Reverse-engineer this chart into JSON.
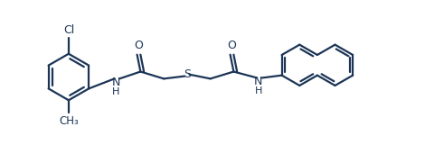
{
  "bg_color": "#ffffff",
  "line_color": "#1c3557",
  "line_width": 1.6,
  "font_size": 9,
  "fig_width": 4.91,
  "fig_height": 1.71,
  "dpi": 100,
  "xlim": [
    0,
    14.5
  ],
  "ylim": [
    -1.2,
    4.2
  ]
}
